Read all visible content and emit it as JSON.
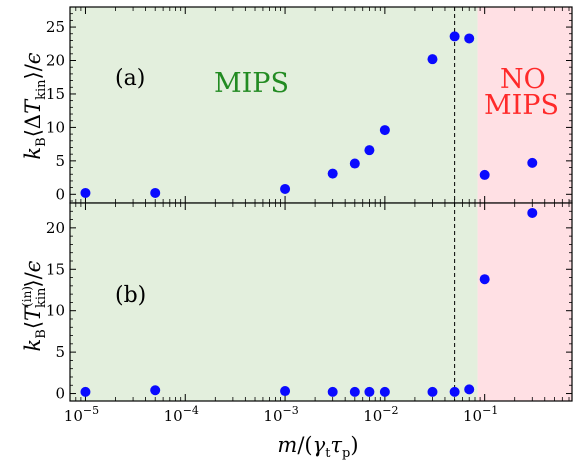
{
  "chart_data": [
    {
      "panel": "top",
      "type": "scatter",
      "panel_label": "(a)",
      "ylabel": "k_B⟨ΔT_kin⟩/ε",
      "xscale": "log",
      "xlim": [
        7e-06,
        0.75
      ],
      "ylim": [
        -1.3,
        28
      ],
      "yticks": [
        0,
        5,
        10,
        15,
        20,
        25
      ],
      "x": [
        1e-05,
        5e-05,
        0.001,
        0.003,
        0.005,
        0.007,
        0.01,
        0.03,
        0.05,
        0.07,
        0.1,
        0.3
      ],
      "y": [
        0.2,
        0.2,
        0.8,
        3.1,
        4.6,
        6.6,
        9.6,
        20.2,
        23.6,
        23.3,
        2.9,
        4.7
      ],
      "regions": [
        {
          "label": "MIPS",
          "x_from": 7e-06,
          "x_to": 0.085,
          "color": "#e3efdd"
        },
        {
          "label": "NO MIPS",
          "x_from": 0.085,
          "x_to": 0.75,
          "color": "#ffe0e4"
        }
      ],
      "vline_x": 0.05
    },
    {
      "panel": "bottom",
      "type": "scatter",
      "panel_label": "(b)",
      "ylabel": "k_B⟨T_kin^(in)⟩/ε",
      "xlabel": "m/(γ_t τ_p)",
      "xscale": "log",
      "xlim": [
        7e-06,
        0.75
      ],
      "ylim": [
        -0.9,
        23
      ],
      "yticks": [
        0,
        5,
        10,
        15,
        20
      ],
      "x": [
        1e-05,
        5e-05,
        0.001,
        0.003,
        0.005,
        0.007,
        0.01,
        0.03,
        0.05,
        0.07,
        0.1,
        0.3
      ],
      "y": [
        0.2,
        0.4,
        0.3,
        0.2,
        0.2,
        0.2,
        0.2,
        0.2,
        0.2,
        0.5,
        13.8,
        21.8
      ],
      "regions": [
        {
          "x_from": 7e-06,
          "x_to": 0.085,
          "color": "#e3efdd"
        },
        {
          "x_from": 0.085,
          "x_to": 0.75,
          "color": "#ffe0e4"
        }
      ],
      "vline_x": 0.05
    }
  ],
  "x_ticks": [
    {
      "value": 1e-05,
      "mantissa": "10",
      "exp": "−5"
    },
    {
      "value": 0.0001,
      "mantissa": "10",
      "exp": "−4"
    },
    {
      "value": 0.001,
      "mantissa": "10",
      "exp": "−3"
    },
    {
      "value": 0.01,
      "mantissa": "10",
      "exp": "−2"
    },
    {
      "value": 0.1,
      "mantissa": "10",
      "exp": "−1"
    }
  ],
  "text": {
    "region_mips": "MIPS",
    "region_no": "NO",
    "region_mips2": "MIPS",
    "xlabel_m": "m",
    "xlabel_slash": "/(",
    "xlabel_gamma": "γ",
    "xlabel_t": "t",
    "xlabel_tau": "τ",
    "xlabel_p": "p",
    "xlabel_close": ")",
    "ya_k": "k",
    "ya_B": "B",
    "ya_open": "⟨Δ",
    "ya_T": "T",
    "ya_kin": "kin",
    "ya_close": "⟩/",
    "ya_eps": "ϵ",
    "yb_k": "k",
    "yb_B": "B",
    "yb_open": "⟨",
    "yb_T": "T",
    "yb_in": "(in)",
    "yb_kin": "kin",
    "yb_close": "⟩/",
    "yb_eps": "ϵ"
  },
  "colors": {
    "marker": "#0a0aff",
    "mips_bg": "#e3efdd",
    "nomips_bg": "#ffe0e4",
    "mips_text": "#228b22",
    "nomips_text": "#ff2a2a"
  }
}
